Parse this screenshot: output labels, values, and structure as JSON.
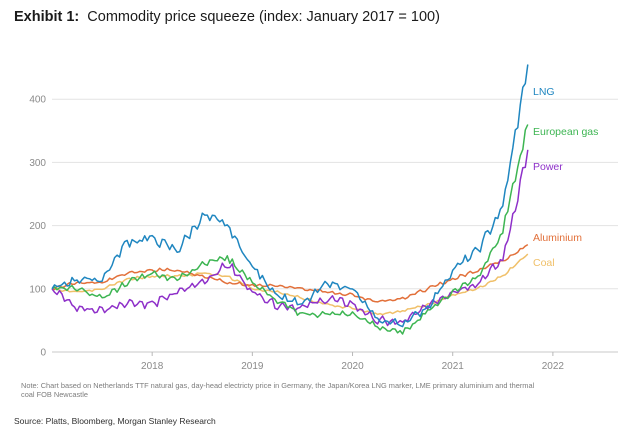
{
  "title": {
    "label": "Exhibit 1:",
    "text": "Commodity price squeeze (index: January 2017 = 100)"
  },
  "note": "Note: Chart based on Netherlands TTF natural gas, day-head electricty price in Germany, the Japan/Korea LNG marker, LME primary aluminium and thermal coal FOB Newcastle",
  "source": "Source: Platts, Bloomberg, Morgan Stanley Research",
  "chart_data": {
    "type": "line",
    "title": "Commodity price squeeze (index: January 2017 = 100)",
    "xlabel": "",
    "ylabel": "",
    "xlim": [
      2017.0,
      2022.65
    ],
    "ylim": [
      0,
      470
    ],
    "x_ticks": [
      "2018",
      "2019",
      "2020",
      "2021",
      "2022"
    ],
    "y_ticks": [
      0,
      100,
      200,
      300,
      400
    ],
    "grid": "horizontal",
    "legend": "direct labels at line ends (right)",
    "x": [
      2017.0,
      2017.25,
      2017.5,
      2017.75,
      2018.0,
      2018.25,
      2018.5,
      2018.75,
      2019.0,
      2019.25,
      2019.5,
      2019.75,
      2020.0,
      2020.25,
      2020.5,
      2020.75,
      2021.0,
      2021.25,
      2021.5,
      2021.75
    ],
    "series": [
      {
        "name": "LNG",
        "color": "#1f86c0",
        "values": [
          100,
          115,
          115,
          175,
          180,
          160,
          215,
          200,
          135,
          90,
          75,
          110,
          100,
          50,
          45,
          70,
          130,
          160,
          230,
          455
        ]
      },
      {
        "name": "European gas",
        "color": "#3db552",
        "values": [
          100,
          100,
          85,
          110,
          125,
          115,
          140,
          150,
          110,
          80,
          60,
          60,
          60,
          40,
          30,
          65,
          95,
          120,
          190,
          360
        ]
      },
      {
        "name": "Power",
        "color": "#8e30c9",
        "values": [
          100,
          70,
          65,
          80,
          75,
          95,
          110,
          140,
          95,
          75,
          70,
          85,
          75,
          50,
          45,
          75,
          95,
          110,
          145,
          320
        ]
      },
      {
        "name": "Aluminium",
        "color": "#e2703a",
        "values": [
          100,
          110,
          110,
          125,
          130,
          130,
          120,
          110,
          105,
          105,
          100,
          95,
          90,
          80,
          85,
          100,
          115,
          130,
          145,
          170
        ]
      },
      {
        "name": "Coal",
        "color": "#f0c069",
        "values": [
          100,
          95,
          100,
          115,
          120,
          120,
          125,
          120,
          100,
          95,
          85,
          75,
          70,
          60,
          65,
          75,
          90,
          100,
          120,
          155
        ]
      }
    ]
  }
}
